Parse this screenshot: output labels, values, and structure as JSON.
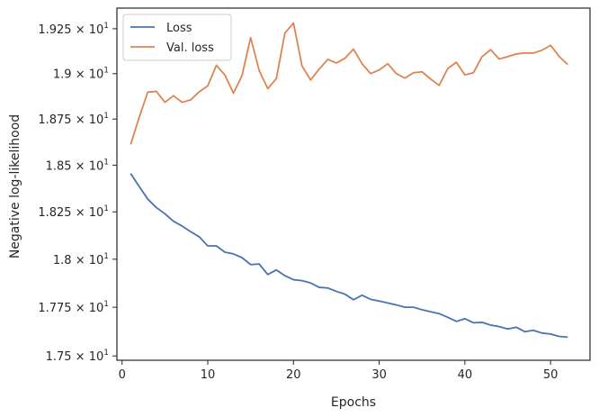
{
  "chart_data": {
    "type": "line",
    "xlabel": "Epochs",
    "ylabel": "Negative log-likelihood",
    "xlim": [
      -0.6,
      54.6
    ],
    "ylim": [
      17.478,
      19.366
    ],
    "y_scale": "log",
    "x_ticks": [
      0,
      10,
      20,
      30,
      40,
      50
    ],
    "x_tick_labels": [
      "0",
      "10",
      "20",
      "30",
      "40",
      "50"
    ],
    "y_ticks": [
      17.5,
      17.75,
      18.0,
      18.25,
      18.5,
      18.75,
      19.0,
      19.25
    ],
    "y_tick_labels": [
      {
        "mantissa": "1.75",
        "base": "10",
        "exp": "1"
      },
      {
        "mantissa": "1.775",
        "base": "10",
        "exp": "1"
      },
      {
        "mantissa": "1.8",
        "base": "10",
        "exp": "1"
      },
      {
        "mantissa": "1.825",
        "base": "10",
        "exp": "1"
      },
      {
        "mantissa": "1.85",
        "base": "10",
        "exp": "1"
      },
      {
        "mantissa": "1.875",
        "base": "10",
        "exp": "1"
      },
      {
        "mantissa": "1.9",
        "base": "10",
        "exp": "1"
      },
      {
        "mantissa": "1.925",
        "base": "10",
        "exp": "1"
      }
    ],
    "grid": false,
    "legend_position": "top-left",
    "x": [
      1,
      2,
      3,
      4,
      5,
      6,
      7,
      8,
      9,
      10,
      11,
      12,
      13,
      14,
      15,
      16,
      17,
      18,
      19,
      20,
      21,
      22,
      23,
      24,
      25,
      26,
      27,
      28,
      29,
      30,
      31,
      32,
      33,
      34,
      35,
      36,
      37,
      38,
      39,
      40,
      41,
      42,
      43,
      44,
      45,
      46,
      47,
      48,
      49,
      50,
      51,
      52
    ],
    "series": [
      {
        "name": "Loss",
        "color": "#4c72b0",
        "values": [
          18.455,
          18.385,
          18.318,
          18.273,
          18.24,
          18.2,
          18.175,
          18.145,
          18.118,
          18.07,
          18.07,
          18.037,
          18.028,
          18.008,
          17.972,
          17.975,
          17.92,
          17.944,
          17.914,
          17.893,
          17.888,
          17.876,
          17.853,
          17.85,
          17.832,
          17.818,
          17.789,
          17.812,
          17.791,
          17.782,
          17.772,
          17.762,
          17.75,
          17.75,
          17.737,
          17.727,
          17.717,
          17.698,
          17.677,
          17.691,
          17.67,
          17.672,
          17.658,
          17.65,
          17.638,
          17.647,
          17.624,
          17.631,
          17.617,
          17.612,
          17.6,
          17.596
        ]
      },
      {
        "name": "Val. loss",
        "color": "#dd8452",
        "values": [
          18.612,
          18.76,
          18.898,
          18.902,
          18.842,
          18.878,
          18.842,
          18.855,
          18.9,
          18.932,
          19.046,
          18.992,
          18.892,
          18.99,
          19.2,
          19.017,
          18.917,
          18.972,
          19.226,
          19.282,
          19.042,
          18.965,
          19.025,
          19.079,
          19.059,
          19.085,
          19.136,
          19.055,
          19.0,
          19.02,
          19.055,
          19.0,
          18.975,
          19.005,
          19.01,
          18.97,
          18.935,
          19.028,
          19.063,
          18.993,
          19.005,
          19.094,
          19.133,
          19.081,
          19.094,
          19.109,
          19.115,
          19.114,
          19.13,
          19.157,
          19.095,
          19.05
        ]
      }
    ]
  }
}
